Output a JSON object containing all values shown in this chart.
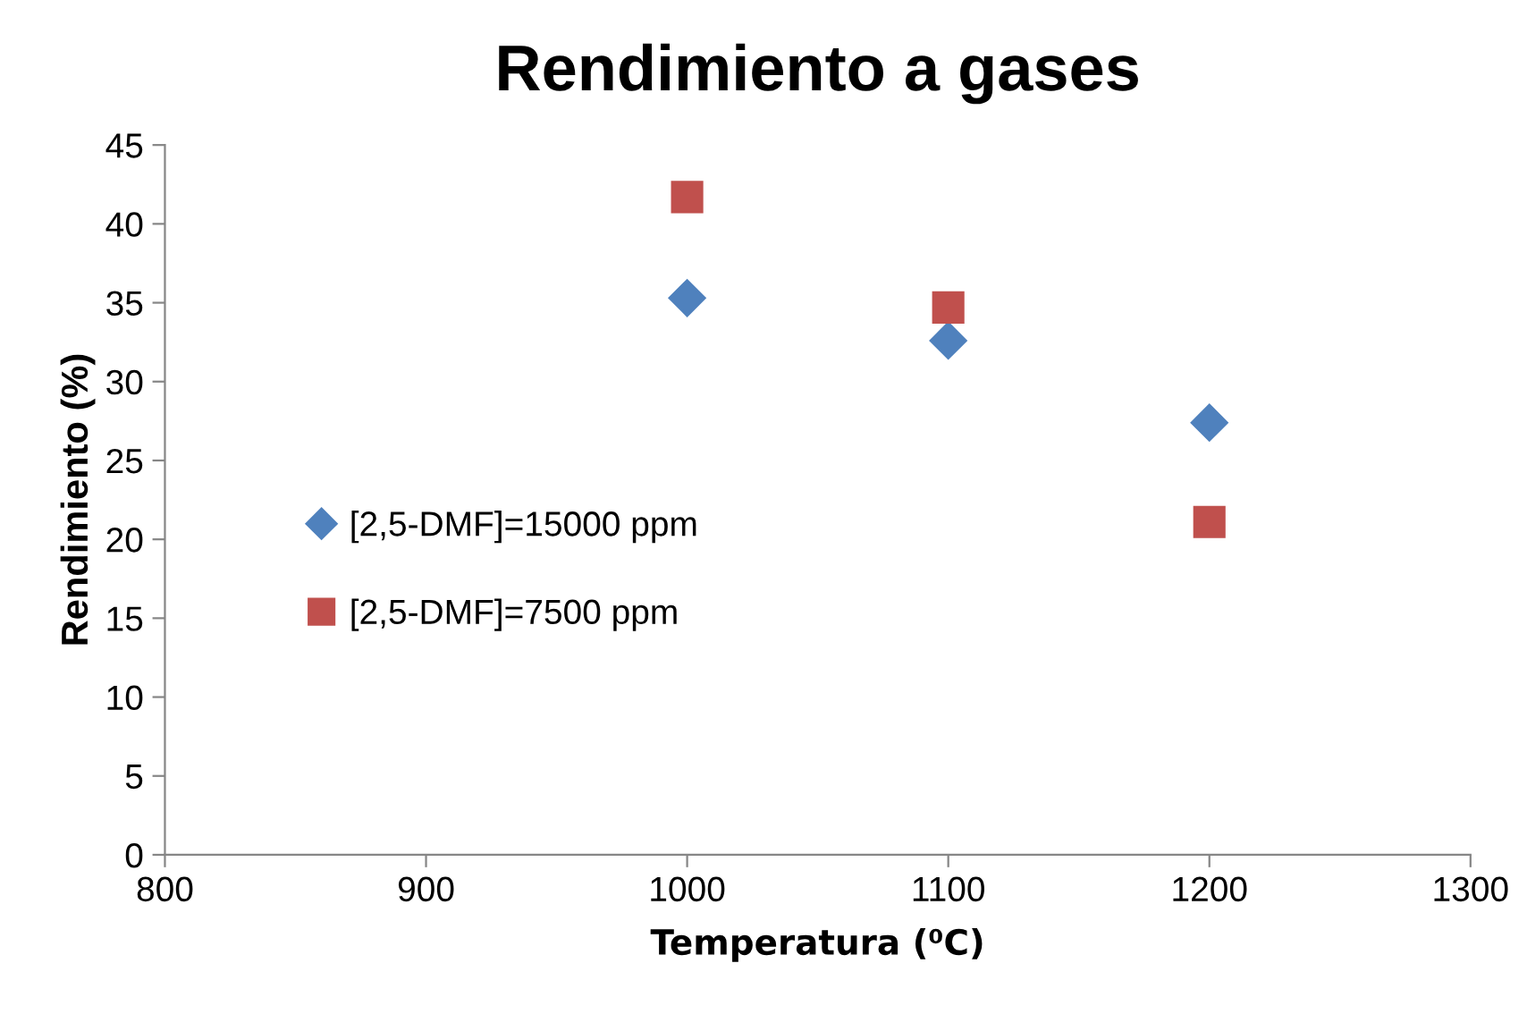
{
  "chart_data": {
    "type": "scatter",
    "title": "Rendimiento a gases",
    "xlabel": "Temperatura (⁰C)",
    "ylabel": "Rendimiento (%)",
    "x": [
      1000,
      1100,
      1200
    ],
    "series": [
      {
        "name": "[2,5-DMF]=15000 ppm",
        "color": "#4f81bd",
        "marker": "diamond",
        "values": [
          35.3,
          32.6,
          27.4
        ]
      },
      {
        "name": "[2,5-DMF]=7500 ppm",
        "color": "#c0504d",
        "marker": "square",
        "values": [
          41.7,
          34.7,
          21.1
        ]
      }
    ],
    "xlim": [
      800,
      1300
    ],
    "xticks": [
      800,
      900,
      1000,
      1100,
      1200,
      1300
    ],
    "ylim": [
      0,
      45
    ],
    "yticks": [
      0,
      5,
      10,
      15,
      20,
      25,
      30,
      35,
      40,
      45
    ],
    "grid": false,
    "legend": "left"
  }
}
